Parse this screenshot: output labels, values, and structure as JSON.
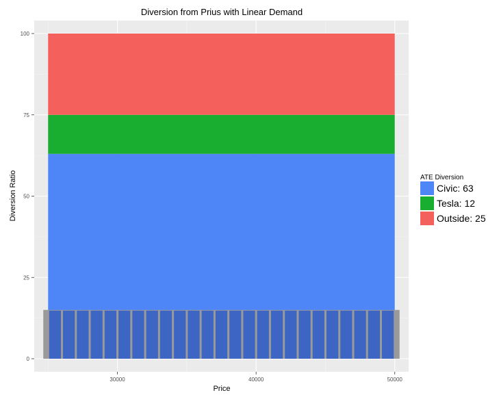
{
  "chart_data": {
    "type": "area",
    "title": "Diversion from Prius with Linear Demand",
    "xlabel": "Price",
    "ylabel": "Diversion Ratio",
    "xlim": [
      24000,
      51000
    ],
    "ylim": [
      -4,
      104
    ],
    "x_ticks": [
      30000,
      40000,
      50000
    ],
    "x_tick_labels": [
      "30000",
      "40000",
      "50000"
    ],
    "y_ticks": [
      0,
      25,
      50,
      75,
      100
    ],
    "y_tick_labels": [
      "0",
      "25",
      "50",
      "75",
      "100"
    ],
    "grid": true,
    "stacked": true,
    "x": [
      25000,
      50000
    ],
    "series": [
      {
        "name": "Civic",
        "values": [
          63,
          63
        ],
        "color": "#4f86f7"
      },
      {
        "name": "Tesla",
        "values": [
          12,
          12
        ],
        "color": "#1aae30"
      },
      {
        "name": "Outside",
        "values": [
          25,
          25
        ],
        "color": "#f4605c"
      }
    ],
    "rug": {
      "y_top": 15,
      "x_start": 25000,
      "x_end": 50000,
      "x_values": [
        25000,
        26000,
        27000,
        28000,
        29000,
        30000,
        31000,
        32000,
        33000,
        34000,
        35000,
        36000,
        37000,
        38000,
        39000,
        40000,
        41000,
        42000,
        43000,
        44000,
        45000,
        46000,
        47000,
        48000,
        49000
      ],
      "bar_color": "#3d66c4",
      "backdrop_color": "#9a9a9a"
    },
    "legend": {
      "title": "ATE Diversion",
      "placement": "right",
      "entries": [
        {
          "label": "Civic:",
          "value": "63",
          "color": "#4f86f7"
        },
        {
          "label": "Tesla:",
          "value": "12",
          "color": "#1aae30"
        },
        {
          "label": "Outside:",
          "value": "25",
          "color": "#f4605c"
        }
      ]
    }
  }
}
